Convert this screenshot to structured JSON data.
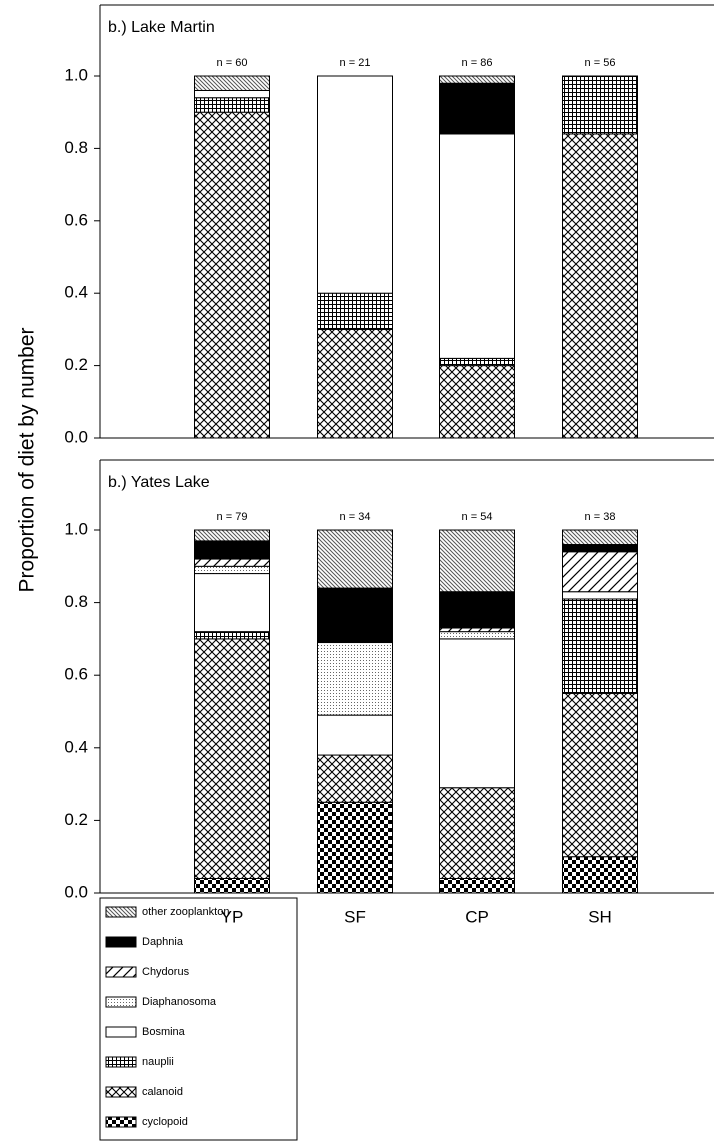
{
  "chart_data": [
    {
      "type": "bar",
      "stacked": true,
      "title": "b.) Lake Martin",
      "ylabel": "Proportion of diet by number",
      "categories": [
        null,
        null,
        null,
        null
      ],
      "annotations": [
        "n = 60",
        "n = 21",
        "n = 86",
        "n = 56"
      ],
      "ylim": [
        0,
        1.2
      ],
      "yticks": [
        {
          "value": 0,
          "label": "0.0"
        },
        0.2,
        0.4,
        0.6,
        0.8,
        {
          "value": 1,
          "label": "1.0"
        }
      ],
      "series": [
        {
          "color": "#000000",
          "pattern": "checker",
          "values": [
            0,
            0,
            0,
            0
          ]
        },
        {
          "color": "#000000",
          "pattern": "crosshatch",
          "values": [
            0.9,
            0.3,
            0.2,
            0.84
          ]
        },
        {
          "color": "#000000",
          "pattern": "grid",
          "values": [
            0.04,
            0.1,
            0.02,
            0.16
          ]
        },
        {
          "color": "#000000",
          "pattern": "none",
          "values": [
            0.02,
            0.6,
            0.62,
            0
          ]
        },
        {
          "color": "#000000",
          "pattern": "dots",
          "values": [
            0,
            0,
            0,
            0
          ]
        },
        {
          "color": "#000000",
          "pattern": "diagonal-wide",
          "values": [
            0,
            0,
            0,
            0
          ]
        },
        {
          "color": "#000000",
          "pattern": "solid",
          "values": [
            0,
            0,
            0.14,
            0
          ]
        },
        {
          "color": "#000000",
          "pattern": "diagonal-dense",
          "values": [
            0.04,
            0,
            0.02,
            0
          ]
        }
      ]
    },
    {
      "type": "bar",
      "stacked": true,
      "title": "b.) Yates Lake",
      "categories": [
        "YP",
        "SF",
        "CP",
        "SH"
      ],
      "annotations": [
        "n = 79",
        "n = 34",
        "n = 54",
        "n = 38"
      ],
      "ylim": [
        0,
        1.2
      ],
      "yticks": [
        {
          "value": 0,
          "label": "0.0"
        },
        0.2,
        0.4,
        0.6,
        0.8,
        {
          "value": 1,
          "label": "1.0"
        }
      ],
      "series": [
        {
          "name": "cyclopoid",
          "color": "#000000",
          "pattern": "checker",
          "values": [
            0.04,
            0.25,
            0.04,
            0.1
          ]
        },
        {
          "name": "calanoid",
          "color": "#000000",
          "pattern": "crosshatch",
          "values": [
            0.66,
            0.13,
            0.25,
            0.45
          ]
        },
        {
          "name": "nauplii",
          "color": "#000000",
          "pattern": "grid",
          "values": [
            0.02,
            0,
            0,
            0.26
          ]
        },
        {
          "name": "Bosmina",
          "color": "#000000",
          "pattern": "none",
          "values": [
            0.16,
            0.11,
            0.41,
            0.02
          ]
        },
        {
          "name": "Diaphanosoma",
          "color": "#000000",
          "pattern": "dots",
          "values": [
            0.02,
            0.2,
            0.02,
            0
          ]
        },
        {
          "name": "Chydorus",
          "color": "#000000",
          "pattern": "diagonal-wide",
          "values": [
            0.02,
            0,
            0.01,
            0.11
          ]
        },
        {
          "name": "Daphnia",
          "color": "#000000",
          "pattern": "solid",
          "values": [
            0.05,
            0.15,
            0.1,
            0.02
          ]
        },
        {
          "name": "other zooplankton",
          "color": "#000000",
          "pattern": "diagonal-dense",
          "values": [
            0.03,
            0.16,
            0.17,
            0.04
          ]
        }
      ]
    }
  ]
}
